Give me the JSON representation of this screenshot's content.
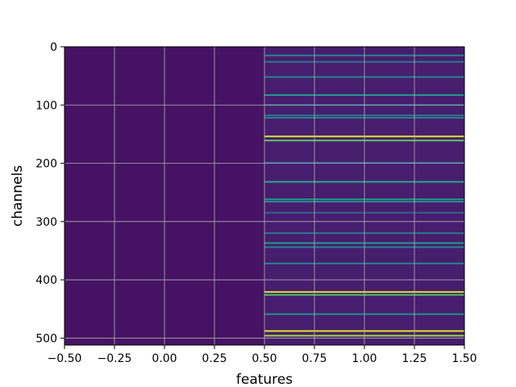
{
  "chart_data": {
    "type": "heatmap",
    "title": "",
    "xlabel": "features",
    "ylabel": "channels",
    "xlim": [
      -0.5,
      1.5
    ],
    "ylim": [
      512,
      0
    ],
    "y_inverted": true,
    "grid": true,
    "colormap": "viridis",
    "columns": [
      0,
      1
    ],
    "rows": 512,
    "x_ticks": [
      "−0.50",
      "−0.25",
      "0.00",
      "0.25",
      "0.50",
      "0.75",
      "1.00",
      "1.25",
      "1.50"
    ],
    "x_tick_values": [
      -0.5,
      -0.25,
      0.0,
      0.25,
      0.5,
      0.75,
      1.0,
      1.25,
      1.5
    ],
    "y_ticks": [
      "0",
      "100",
      "200",
      "300",
      "400",
      "500"
    ],
    "y_tick_values": [
      0,
      100,
      200,
      300,
      400,
      500
    ],
    "column_0_level": 0.05,
    "column_1_highlight_rows": [
      {
        "row": 14,
        "value": 0.45
      },
      {
        "row": 25,
        "value": 0.4
      },
      {
        "row": 51,
        "value": 0.45
      },
      {
        "row": 82,
        "value": 0.55
      },
      {
        "row": 99,
        "value": 0.35
      },
      {
        "row": 117,
        "value": 0.4
      },
      {
        "row": 121,
        "value": 0.45
      },
      {
        "row": 153,
        "value": 0.95
      },
      {
        "row": 160,
        "value": 0.75
      },
      {
        "row": 198,
        "value": 0.35
      },
      {
        "row": 231,
        "value": 0.6
      },
      {
        "row": 261,
        "value": 0.55
      },
      {
        "row": 265,
        "value": 0.5
      },
      {
        "row": 284,
        "value": 0.3
      },
      {
        "row": 319,
        "value": 0.4
      },
      {
        "row": 336,
        "value": 0.55
      },
      {
        "row": 343,
        "value": 0.45
      },
      {
        "row": 371,
        "value": 0.45
      },
      {
        "row": 420,
        "value": 0.95
      },
      {
        "row": 425,
        "value": 0.7
      },
      {
        "row": 458,
        "value": 0.5
      },
      {
        "row": 487,
        "value": 0.95
      },
      {
        "row": 495,
        "value": 0.85
      }
    ]
  }
}
